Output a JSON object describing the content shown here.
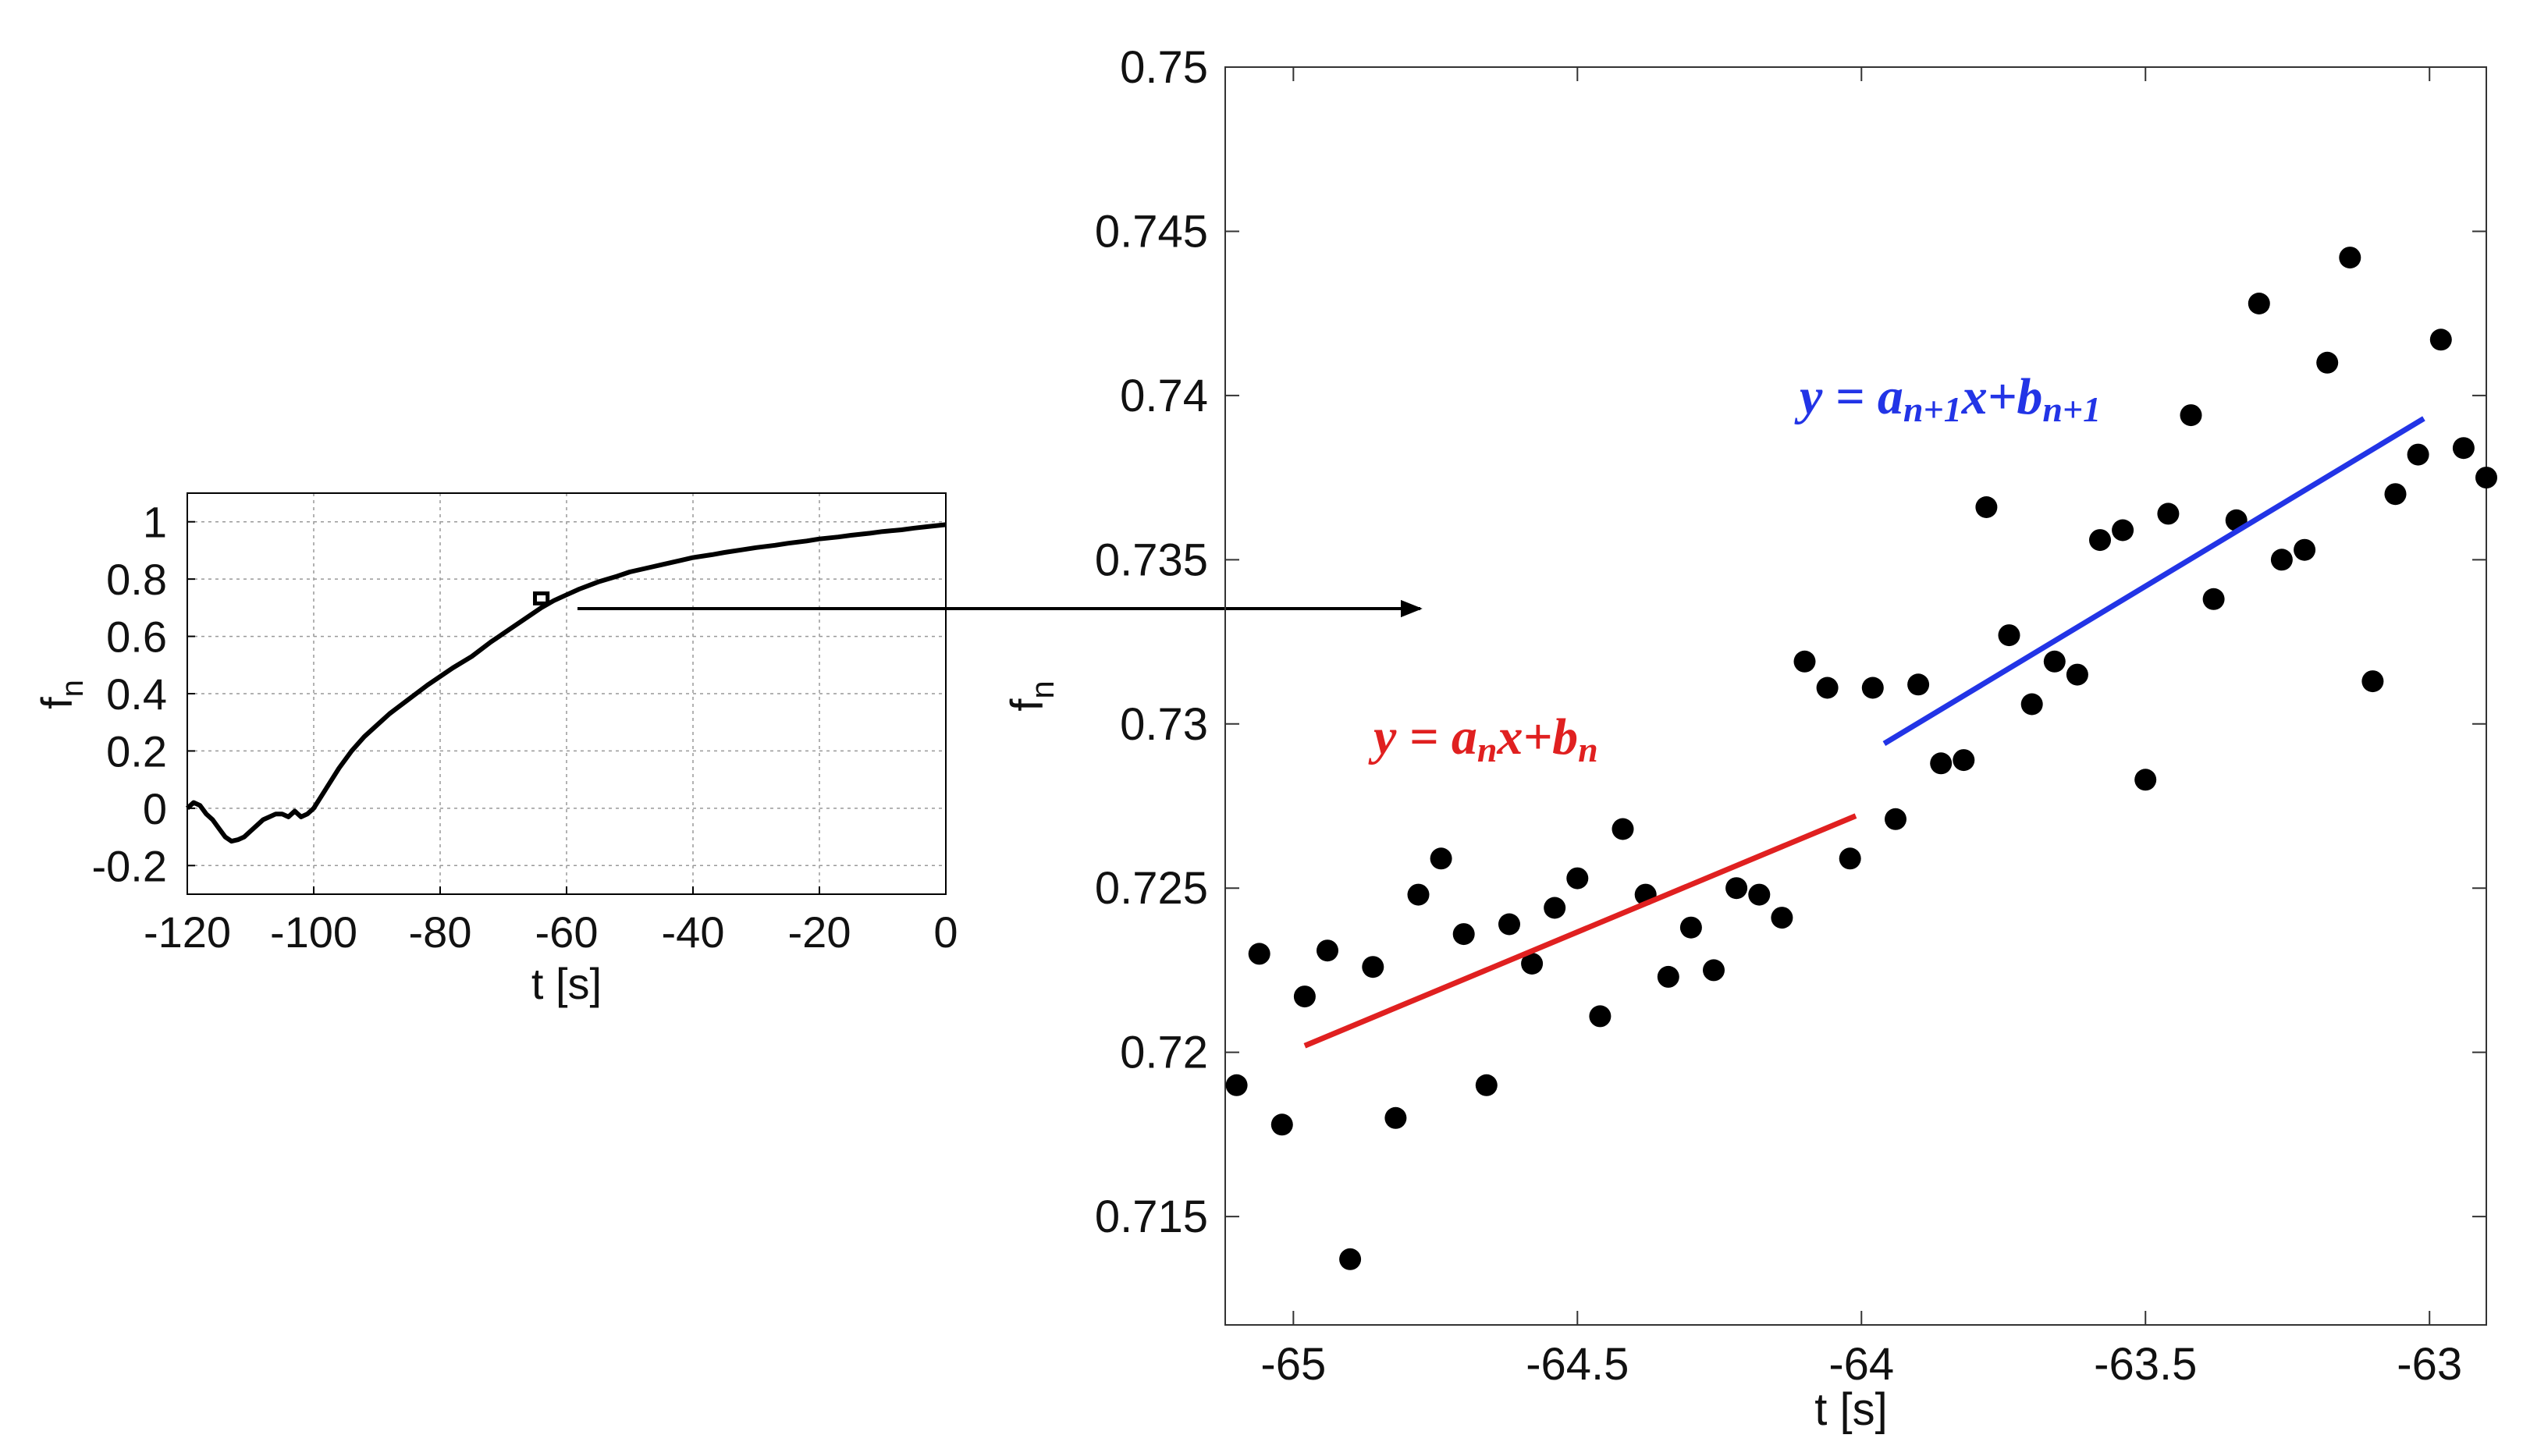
{
  "chart_data": [
    {
      "id": "overview",
      "type": "line",
      "title": "",
      "xlabel": "t [s]",
      "ylabel_main": "f",
      "ylabel_sub": "n",
      "xlim": [
        -120,
        0
      ],
      "ylim": [
        -0.3,
        1.1
      ],
      "grid": true,
      "xticks": [
        -120,
        -100,
        -80,
        -60,
        -40,
        -20,
        0
      ],
      "yticks": [
        -0.2,
        0,
        0.2,
        0.4,
        0.6,
        0.8,
        1
      ],
      "ytick_labels": [
        "-0.2",
        "0",
        "0.2",
        "0.4",
        "0.6",
        "0.8",
        "1"
      ],
      "series": [
        {
          "name": "fn",
          "color": "#000000",
          "x": [
            -120,
            -119,
            -118,
            -117,
            -116,
            -115,
            -114,
            -113,
            -112,
            -111,
            -110,
            -109,
            -108,
            -107,
            -106,
            -105,
            -104,
            -103,
            -102,
            -101,
            -100,
            -98,
            -96,
            -94,
            -92,
            -90,
            -88,
            -85,
            -82,
            -80,
            -78,
            -75,
            -72,
            -70,
            -68,
            -66,
            -64,
            -62,
            -60,
            -58,
            -55,
            -52,
            -50,
            -47,
            -45,
            -42,
            -40,
            -37,
            -35,
            -32,
            -30,
            -27,
            -25,
            -22,
            -20,
            -17,
            -15,
            -12,
            -10,
            -7,
            -5,
            -3,
            0
          ],
          "y": [
            0,
            0.02,
            0.01,
            -0.02,
            -0.04,
            -0.07,
            -0.1,
            -0.115,
            -0.11,
            -0.1,
            -0.08,
            -0.06,
            -0.04,
            -0.03,
            -0.02,
            -0.02,
            -0.03,
            -0.01,
            -0.03,
            -0.02,
            0,
            0.07,
            0.14,
            0.2,
            0.25,
            0.29,
            0.33,
            0.38,
            0.43,
            0.46,
            0.49,
            0.53,
            0.58,
            0.61,
            0.64,
            0.67,
            0.7,
            0.725,
            0.745,
            0.765,
            0.79,
            0.81,
            0.825,
            0.84,
            0.85,
            0.865,
            0.875,
            0.885,
            0.893,
            0.903,
            0.91,
            0.918,
            0.925,
            0.933,
            0.94,
            0.947,
            0.953,
            0.96,
            0.966,
            0.972,
            0.978,
            0.983,
            0.99
          ]
        }
      ],
      "zoom_box": {
        "x": [
          -65,
          -63
        ],
        "y": [
          0.715,
          0.75
        ]
      }
    },
    {
      "id": "zoom",
      "type": "scatter",
      "title": "",
      "xlabel": "t [s]",
      "ylabel_main": "f",
      "ylabel_sub": "n",
      "xlim": [
        -65.12,
        -62.9
      ],
      "ylim": [
        0.7117,
        0.75
      ],
      "grid": false,
      "xticks": [
        -65,
        -64.5,
        -64,
        -63.5,
        -63
      ],
      "yticks": [
        0.715,
        0.72,
        0.725,
        0.73,
        0.735,
        0.74,
        0.745,
        0.75
      ],
      "ytick_labels": [
        "0.715",
        "0.72",
        "0.725",
        "0.73",
        "0.735",
        "0.74",
        "0.745",
        "0.75"
      ],
      "points_color": "#000000",
      "points": {
        "x": [
          -65.1,
          -65.06,
          -65.02,
          -64.98,
          -64.94,
          -64.9,
          -64.86,
          -64.82,
          -64.78,
          -64.74,
          -64.7,
          -64.66,
          -64.62,
          -64.58,
          -64.54,
          -64.5,
          -64.46,
          -64.42,
          -64.38,
          -64.34,
          -64.3,
          -64.26,
          -64.22,
          -64.18,
          -64.14,
          -64.1,
          -64.06,
          -64.02,
          -63.98,
          -63.94,
          -63.9,
          -63.86,
          -63.82,
          -63.78,
          -63.74,
          -63.7,
          -63.66,
          -63.62,
          -63.58,
          -63.54,
          -63.5,
          -63.46,
          -63.42,
          -63.38,
          -63.34,
          -63.3,
          -63.26,
          -63.22,
          -63.18,
          -63.14,
          -63.1,
          -63.06,
          -63.02,
          -62.98,
          -62.94,
          -62.9
        ],
        "y": [
          0.719,
          0.723,
          0.7178,
          0.7217,
          0.7231,
          0.7137,
          0.7226,
          0.718,
          0.7248,
          0.7259,
          0.7236,
          0.719,
          0.7239,
          0.7227,
          0.7244,
          0.7253,
          0.7211,
          0.7268,
          0.7248,
          0.7223,
          0.7238,
          0.7225,
          0.725,
          0.7248,
          0.7241,
          0.7319,
          0.7311,
          0.7259,
          0.7311,
          0.7271,
          0.7312,
          0.7288,
          0.7289,
          0.7366,
          0.7327,
          0.7306,
          0.7319,
          0.7315,
          0.7356,
          0.7359,
          0.7283,
          0.7364,
          0.7394,
          0.7338,
          0.7362,
          0.7428,
          0.735,
          0.7353,
          0.741,
          0.7442,
          0.7313,
          0.737,
          0.7382,
          0.7417,
          0.7384,
          0.7375
        ]
      },
      "fit_lines": [
        {
          "name": "fit_n",
          "label": "y = a_n x + b_n",
          "color": "#e02020",
          "x": [
            -64.98,
            -64.01
          ],
          "y": [
            0.7202,
            0.7272
          ]
        },
        {
          "name": "fit_n1",
          "label": "y = a_{n+1} x + b_{n+1}",
          "color": "#2234e6",
          "x": [
            -63.96,
            -63.01
          ],
          "y": [
            0.7294,
            0.7393
          ]
        }
      ],
      "annotations": {
        "eq_n": {
          "y": "y",
          "eq": " = ",
          "a": "a",
          "a_sub": "n",
          "x": "x",
          "plus": "+",
          "b": "b",
          "b_sub": "n"
        },
        "eq_n1": {
          "y": "y",
          "eq": " = ",
          "a": "a",
          "a_sub": "n+1",
          "x": "x",
          "plus": "+",
          "b": "b",
          "b_sub": "n+1"
        }
      }
    }
  ]
}
